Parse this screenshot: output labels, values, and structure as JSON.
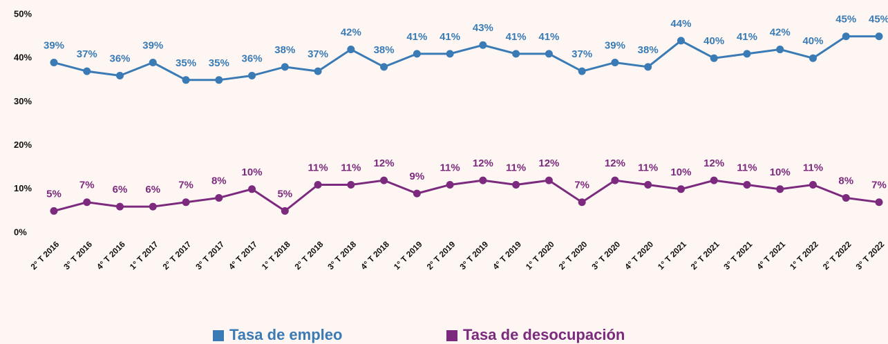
{
  "chart_data": {
    "type": "line",
    "categories": [
      "2° T 2016",
      "3° T 2016",
      "4° T 2016",
      "1° T 2017",
      "2° T 2017",
      "3° T 2017",
      "4° T 2017",
      "1° T 2018",
      "2° T 2018",
      "3° T 2018",
      "4° T 2018",
      "1° T 2019",
      "2° T 2019",
      "3° T 2019",
      "4° T 2019",
      "1° T 2020",
      "2° T 2020",
      "3° T 2020",
      "4° T 2020",
      "1° T 2021",
      "2° T 2021",
      "3° T 2021",
      "4° T 2021",
      "1° T 2022",
      "2° T 2022",
      "3° T 2022"
    ],
    "series": [
      {
        "name": "Tasa de empleo",
        "color": "#3a7bb5",
        "values": [
          39,
          37,
          36,
          39,
          35,
          35,
          36,
          38,
          37,
          42,
          38,
          41,
          41,
          43,
          41,
          41,
          37,
          39,
          38,
          44,
          40,
          41,
          42,
          40,
          45,
          45
        ],
        "value_labels": [
          "39%",
          "37%",
          "36%",
          "39%",
          "35%",
          "35%",
          "36%",
          "38%",
          "37%",
          "42%",
          "38%",
          "41%",
          "41%",
          "43%",
          "41%",
          "41%",
          "37%",
          "39%",
          "38%",
          "44%",
          "40%",
          "41%",
          "42%",
          "40%",
          "45%",
          "45%"
        ]
      },
      {
        "name": "Tasa de desocupación",
        "color": "#7b2a7e",
        "values": [
          5,
          7,
          6,
          6,
          7,
          8,
          10,
          5,
          11,
          11,
          12,
          9,
          11,
          12,
          11,
          12,
          7,
          12,
          11,
          10,
          12,
          11,
          10,
          11,
          8,
          7
        ],
        "value_labels": [
          "5%",
          "7%",
          "6%",
          "6%",
          "7%",
          "8%",
          "10%",
          "5%",
          "11%",
          "11%",
          "12%",
          "9%",
          "11%",
          "12%",
          "11%",
          "12%",
          "7%",
          "12%",
          "11%",
          "10%",
          "12%",
          "11%",
          "10%",
          "11%",
          "8%",
          "7%"
        ]
      }
    ],
    "ylim": [
      0,
      50
    ],
    "yticks": [
      {
        "value": 0,
        "label": "0%"
      },
      {
        "value": 10,
        "label": "10%"
      },
      {
        "value": 20,
        "label": "20%"
      },
      {
        "value": 30,
        "label": "30%"
      },
      {
        "value": 40,
        "label": "40%"
      },
      {
        "value": 50,
        "label": "50%"
      }
    ],
    "grid": false,
    "legend": "bottom"
  }
}
